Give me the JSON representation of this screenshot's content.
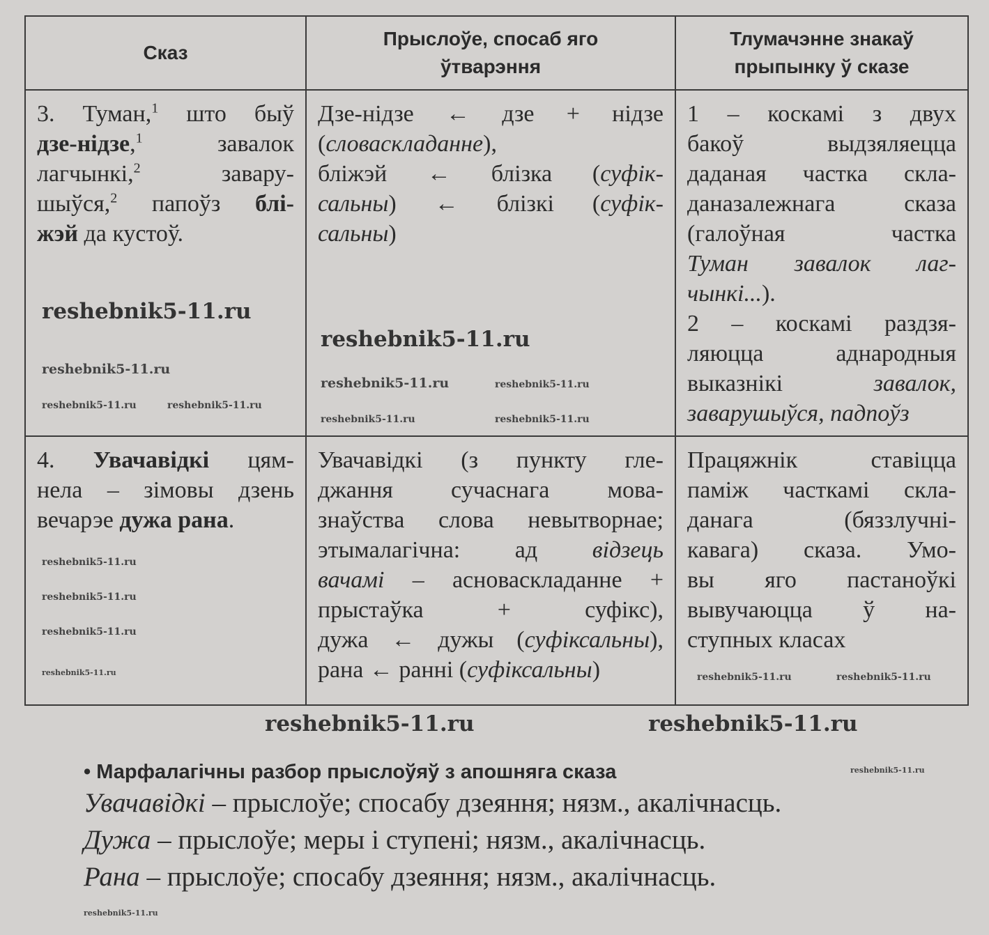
{
  "table": {
    "headers": [
      "Сказ",
      "Прыслоўе, спосаб яго ўтварэння",
      "Тлумачэнне знакаў прыпынку ў сказе"
    ],
    "rows": [
      [
        [
          [
            [
              [
                "3. Туман,",
                ""
              ],
              [
                "1",
                "sup"
              ],
              [
                " што быў",
                ""
              ]
            ],
            [
              [
                "дзе-нідзе",
                "b"
              ],
              [
                ",",
                ""
              ],
              [
                "1",
                "sup"
              ],
              [
                " завалок",
                ""
              ]
            ],
            [
              [
                "лагчынкі,",
                ""
              ],
              [
                "2",
                "sup"
              ],
              [
                " завару-",
                ""
              ]
            ],
            [
              [
                "шыўся,",
                ""
              ],
              [
                "2",
                "sup"
              ],
              [
                " папоўз ",
                ""
              ],
              [
                "блі-",
                "b"
              ]
            ],
            [
              [
                "жэй",
                "b"
              ],
              [
                " да кустоў.",
                ""
              ]
            ]
          ]
        ],
        [
          [
            [
              [
                "Дзе-нідзе ← дзе + нідзе",
                ""
              ]
            ],
            [
              [
                "(",
                ""
              ],
              [
                "словаскладанне",
                "i"
              ],
              [
                "),",
                ""
              ]
            ]
          ],
          [
            [
              [
                "бліжэй ← блізка (",
                ""
              ],
              [
                "суфік-",
                "i"
              ]
            ],
            [
              [
                "сальны",
                "i"
              ],
              [
                ") ← блізкі (",
                ""
              ],
              [
                "суфік-",
                "i"
              ]
            ],
            [
              [
                "сальны",
                "i"
              ],
              [
                ")",
                ""
              ]
            ]
          ]
        ],
        [
          [
            [
              [
                "1 – коскамі з двух",
                ""
              ]
            ],
            [
              [
                "бакоў выдзяляецца",
                ""
              ]
            ],
            [
              [
                "даданая частка скла-",
                ""
              ]
            ],
            [
              [
                "даназалежнага сказа",
                ""
              ]
            ],
            [
              [
                "(галоўная частка",
                ""
              ]
            ],
            [
              [
                "Туман завалок лаг-",
                "i"
              ]
            ],
            [
              [
                "чынкі...",
                "i"
              ],
              [
                ").",
                ""
              ]
            ]
          ],
          [
            [
              [
                "2 – коскамі раздзя-",
                ""
              ]
            ],
            [
              [
                "ляюцца аднародныя",
                ""
              ]
            ],
            [
              [
                "выказнікі ",
                ""
              ],
              [
                "завалок,",
                "i"
              ]
            ],
            [
              [
                "заварушыўся, падпоўз",
                "i"
              ]
            ]
          ]
        ]
      ],
      [
        [
          [
            [
              [
                "4. ",
                ""
              ],
              [
                "Увачавідкі",
                "b"
              ],
              [
                " цям-",
                ""
              ]
            ],
            [
              [
                "нела – зімовы дзень",
                ""
              ]
            ],
            [
              [
                "вечарэе ",
                ""
              ],
              [
                "дужа рана",
                "b"
              ],
              [
                ".",
                ""
              ]
            ]
          ]
        ],
        [
          [
            [
              [
                "Увачавідкі (з пункту гле-",
                ""
              ]
            ],
            [
              [
                "джання сучаснага мова-",
                ""
              ]
            ],
            [
              [
                "знаўства слова невытворнае;",
                ""
              ]
            ],
            [
              [
                "этымалагічна: ад ",
                ""
              ],
              [
                "відзець",
                "i"
              ]
            ],
            [
              [
                "вачамі",
                "i"
              ],
              [
                " – асноваскладанне +",
                ""
              ]
            ],
            [
              [
                "прыстаўка + суфікс),",
                ""
              ]
            ],
            [
              [
                "дужа ← дужы (",
                ""
              ],
              [
                "суфіксальны",
                "i"
              ],
              [
                "),",
                ""
              ]
            ],
            [
              [
                "рана ← ранні (",
                ""
              ],
              [
                "суфіксальны",
                "i"
              ],
              [
                ")",
                ""
              ]
            ]
          ]
        ],
        [
          [
            [
              [
                "Працяжнік ставіцца",
                ""
              ]
            ],
            [
              [
                "паміж часткамі скла-",
                ""
              ]
            ],
            [
              [
                "данага (бяззлучні-",
                ""
              ]
            ],
            [
              [
                "кавага) сказа. Умо-",
                ""
              ]
            ],
            [
              [
                "вы яго пастаноўкі",
                ""
              ]
            ],
            [
              [
                "вывучаюцца ў на-",
                ""
              ]
            ],
            [
              [
                "ступных класах",
                ""
              ]
            ]
          ]
        ]
      ]
    ]
  },
  "morphology": {
    "heading": "Марфалагічны разбор прыслоўяў з апошняга сказа",
    "bullet": "•",
    "lines": [
      {
        "word": "Увачавідкі",
        "rest": " – прыслоўе; спосабу дзеяння; нязм., акалічнасць."
      },
      {
        "word": "Дужа",
        "rest": " – прыслоўе; меры і ступені; нязм., акалічнасць."
      },
      {
        "word": "Рана",
        "rest": " – прыслоўе; спосабу дзеяння; нязм., акалічнасць."
      }
    ]
  },
  "watermark": "reshebnik5-11.ru"
}
